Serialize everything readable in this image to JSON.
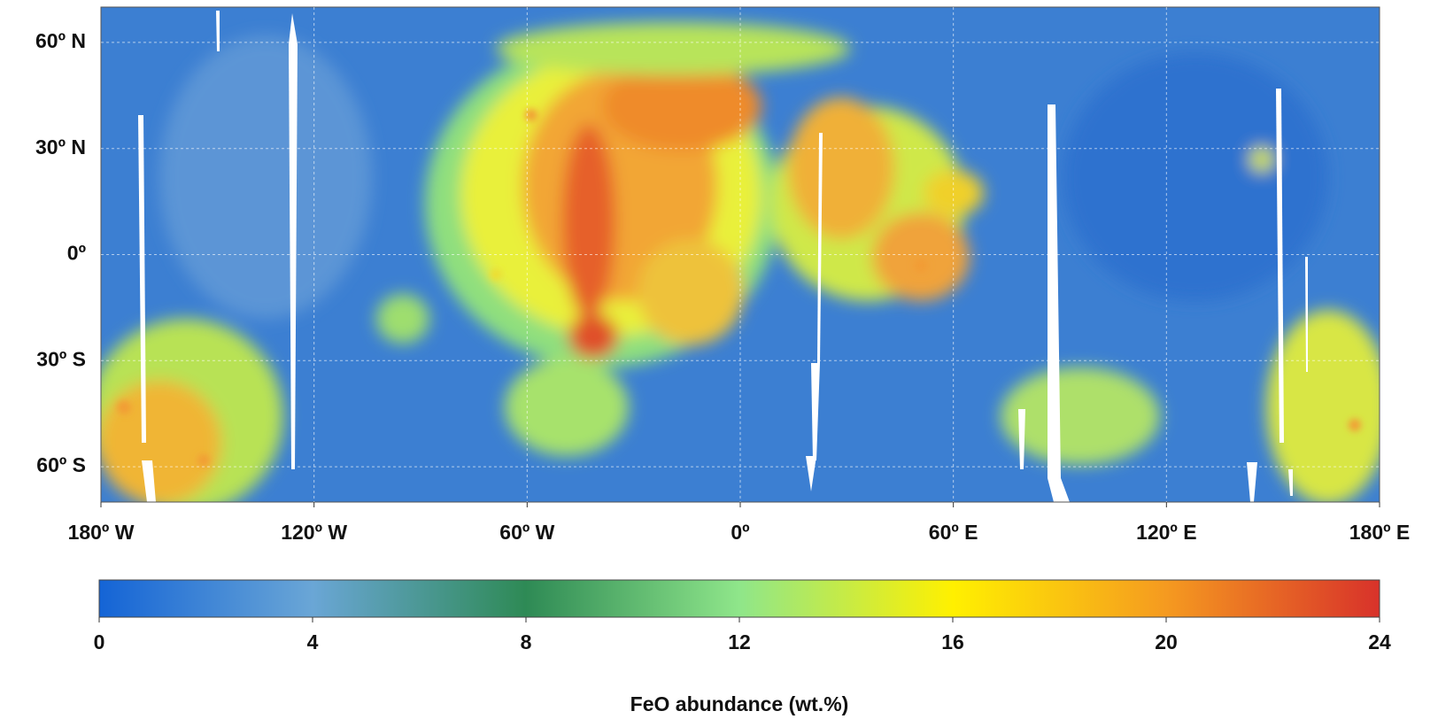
{
  "map": {
    "xlim": [
      -180,
      180
    ],
    "ylim": [
      -70,
      70
    ],
    "xticks": [
      {
        "value": -180,
        "label": "180º W"
      },
      {
        "value": -120,
        "label": "120º W"
      },
      {
        "value": -60,
        "label": "60º W"
      },
      {
        "value": 0,
        "label": "0º"
      },
      {
        "value": 60,
        "label": "60º E"
      },
      {
        "value": 120,
        "label": "120º E"
      },
      {
        "value": 180,
        "label": "180º E"
      }
    ],
    "yticks": [
      {
        "value": 60,
        "label": "60º N"
      },
      {
        "value": 30,
        "label": "30º N"
      },
      {
        "value": 0,
        "label": "0º"
      },
      {
        "value": -30,
        "label": "30º S"
      },
      {
        "value": -60,
        "label": "60º S"
      }
    ],
    "grid": true
  },
  "colorbar": {
    "range": [
      0,
      24
    ],
    "ticks": [
      0,
      4,
      8,
      12,
      16,
      20,
      24
    ],
    "colors": [
      "#1464d6",
      "#6aa6d6",
      "#2e8a55",
      "#8fe68a",
      "#fff000",
      "#f59a20",
      "#d8322a"
    ],
    "label": "FeO abundance (wt.%)"
  }
}
